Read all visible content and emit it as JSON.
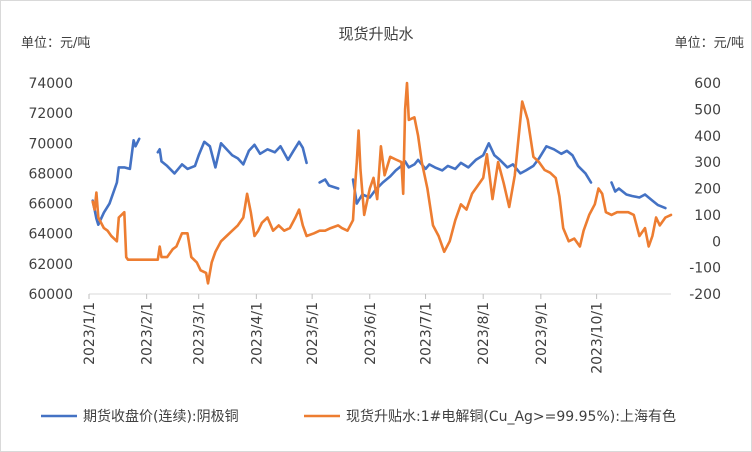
{
  "chart_data": {
    "type": "line",
    "title": "现货升贴水",
    "left_unit_label": "单位：元/吨",
    "right_unit_label": "单位：元/吨",
    "y_left": {
      "min": 60000,
      "max": 74000,
      "ticks": [
        60000,
        62000,
        64000,
        66000,
        68000,
        70000,
        72000,
        74000
      ]
    },
    "y_right": {
      "min": -200,
      "max": 600,
      "ticks": [
        -200,
        -100,
        0,
        100,
        200,
        300,
        400,
        500,
        600
      ]
    },
    "x_axis": {
      "start": "2023-01-01",
      "end": "2023-11-10",
      "ticks": [
        "2023/1/1",
        "2023/2/1",
        "2023/3/1",
        "2023/4/1",
        "2023/5/1",
        "2023/6/1",
        "2023/7/1",
        "2023/8/1",
        "2023/9/1",
        "2023/10/1"
      ]
    },
    "legend": "bottom",
    "series": [
      {
        "name": "期货收盘价(连续):阴极铜",
        "axis": "left",
        "color": "#4472c4",
        "points": [
          [
            "2023-01-03",
            66200
          ],
          [
            "2023-01-04",
            65600
          ],
          [
            "2023-01-05",
            65000
          ],
          [
            "2023-01-06",
            64600
          ],
          [
            "2023-01-09",
            65400
          ],
          [
            "2023-01-12",
            66000
          ],
          [
            "2023-01-16",
            67400
          ],
          [
            "2023-01-17",
            68400
          ],
          [
            "2023-01-20",
            68400
          ],
          [
            "2023-01-23",
            68300
          ],
          [
            "2023-01-25",
            70200
          ],
          [
            "2023-01-26",
            69800
          ],
          [
            "2023-01-28",
            70300
          ],
          [
            "2023-01-29",
            null
          ],
          [
            "2023-02-07",
            69400
          ],
          [
            "2023-02-08",
            69600
          ],
          [
            "2023-02-09",
            68800
          ],
          [
            "2023-02-12",
            68500
          ],
          [
            "2023-02-16",
            68000
          ],
          [
            "2023-02-20",
            68600
          ],
          [
            "2023-02-23",
            68300
          ],
          [
            "2023-02-27",
            68500
          ],
          [
            "2023-03-01",
            69200
          ],
          [
            "2023-03-04",
            70100
          ],
          [
            "2023-03-07",
            69800
          ],
          [
            "2023-03-10",
            68400
          ],
          [
            "2023-03-13",
            70000
          ],
          [
            "2023-03-16",
            69600
          ],
          [
            "2023-03-19",
            69200
          ],
          [
            "2023-03-22",
            69000
          ],
          [
            "2023-03-25",
            68600
          ],
          [
            "2023-03-28",
            69500
          ],
          [
            "2023-03-31",
            69900
          ],
          [
            "2023-04-03",
            69300
          ],
          [
            "2023-04-07",
            69600
          ],
          [
            "2023-04-11",
            69400
          ],
          [
            "2023-04-14",
            69800
          ],
          [
            "2023-04-18",
            68900
          ],
          [
            "2023-04-21",
            69500
          ],
          [
            "2023-04-24",
            70100
          ],
          [
            "2023-04-26",
            69700
          ],
          [
            "2023-04-28",
            68700
          ],
          [
            "2023-04-29",
            null
          ],
          [
            "2023-05-05",
            67400
          ],
          [
            "2023-05-08",
            67600
          ],
          [
            "2023-05-10",
            67200
          ],
          [
            "2023-05-15",
            67000
          ],
          [
            "2023-05-16",
            null
          ],
          [
            "2023-05-23",
            67600
          ],
          [
            "2023-05-25",
            66000
          ],
          [
            "2023-05-28",
            66600
          ],
          [
            "2023-06-01",
            66400
          ],
          [
            "2023-06-04",
            66900
          ],
          [
            "2023-06-08",
            67400
          ],
          [
            "2023-06-12",
            67800
          ],
          [
            "2023-06-15",
            68200
          ],
          [
            "2023-06-18",
            68500
          ],
          [
            "2023-06-20",
            68800
          ],
          [
            "2023-06-22",
            68400
          ],
          [
            "2023-06-25",
            68600
          ],
          [
            "2023-06-27",
            68900
          ],
          [
            "2023-07-01",
            68300
          ],
          [
            "2023-07-03",
            68600
          ],
          [
            "2023-07-06",
            68400
          ],
          [
            "2023-07-10",
            68200
          ],
          [
            "2023-07-13",
            68500
          ],
          [
            "2023-07-17",
            68300
          ],
          [
            "2023-07-20",
            68700
          ],
          [
            "2023-07-24",
            68400
          ],
          [
            "2023-07-28",
            68900
          ],
          [
            "2023-08-01",
            69200
          ],
          [
            "2023-08-04",
            70000
          ],
          [
            "2023-08-07",
            69200
          ],
          [
            "2023-08-10",
            68900
          ],
          [
            "2023-08-14",
            68400
          ],
          [
            "2023-08-17",
            68600
          ],
          [
            "2023-08-21",
            68000
          ],
          [
            "2023-08-24",
            68200
          ],
          [
            "2023-08-28",
            68500
          ],
          [
            "2023-08-31",
            69000
          ],
          [
            "2023-09-04",
            69800
          ],
          [
            "2023-09-08",
            69600
          ],
          [
            "2023-09-12",
            69300
          ],
          [
            "2023-09-15",
            69500
          ],
          [
            "2023-09-18",
            69200
          ],
          [
            "2023-09-21",
            68500
          ],
          [
            "2023-09-25",
            68000
          ],
          [
            "2023-09-28",
            67400
          ],
          [
            "2023-09-29",
            null
          ],
          [
            "2023-10-09",
            67400
          ],
          [
            "2023-10-11",
            66800
          ],
          [
            "2023-10-13",
            67000
          ],
          [
            "2023-10-17",
            66600
          ],
          [
            "2023-10-20",
            66500
          ],
          [
            "2023-10-24",
            66400
          ],
          [
            "2023-10-27",
            66600
          ],
          [
            "2023-10-31",
            66200
          ],
          [
            "2023-11-03",
            65900
          ],
          [
            "2023-11-07",
            65700
          ]
        ]
      },
      {
        "name": "现货升贴水:1#电解铜(Cu_Ag>=99.95%):上海有色",
        "axis": "right",
        "color": "#ed7d31",
        "points": [
          [
            "2023-01-03",
            150
          ],
          [
            "2023-01-04",
            120
          ],
          [
            "2023-01-05",
            185
          ],
          [
            "2023-01-06",
            90
          ],
          [
            "2023-01-09",
            50
          ],
          [
            "2023-01-11",
            40
          ],
          [
            "2023-01-13",
            20
          ],
          [
            "2023-01-16",
            0
          ],
          [
            "2023-01-17",
            90
          ],
          [
            "2023-01-20",
            110
          ],
          [
            "2023-01-21",
            -60
          ],
          [
            "2023-01-22",
            -70
          ],
          [
            "2023-02-07",
            -70
          ],
          [
            "2023-02-08",
            -20
          ],
          [
            "2023-02-09",
            -60
          ],
          [
            "2023-02-12",
            -60
          ],
          [
            "2023-02-15",
            -30
          ],
          [
            "2023-02-17",
            -20
          ],
          [
            "2023-02-20",
            30
          ],
          [
            "2023-02-23",
            30
          ],
          [
            "2023-02-25",
            -60
          ],
          [
            "2023-02-28",
            -80
          ],
          [
            "2023-03-02",
            -110
          ],
          [
            "2023-03-05",
            -120
          ],
          [
            "2023-03-06",
            -160
          ],
          [
            "2023-03-08",
            -80
          ],
          [
            "2023-03-10",
            -40
          ],
          [
            "2023-03-13",
            0
          ],
          [
            "2023-03-16",
            20
          ],
          [
            "2023-03-19",
            40
          ],
          [
            "2023-03-22",
            60
          ],
          [
            "2023-03-25",
            90
          ],
          [
            "2023-03-27",
            180
          ],
          [
            "2023-03-29",
            110
          ],
          [
            "2023-03-31",
            20
          ],
          [
            "2023-04-02",
            40
          ],
          [
            "2023-04-04",
            70
          ],
          [
            "2023-04-07",
            90
          ],
          [
            "2023-04-10",
            40
          ],
          [
            "2023-04-13",
            60
          ],
          [
            "2023-04-16",
            40
          ],
          [
            "2023-04-19",
            50
          ],
          [
            "2023-04-22",
            90
          ],
          [
            "2023-04-24",
            120
          ],
          [
            "2023-04-26",
            60
          ],
          [
            "2023-04-28",
            20
          ],
          [
            "2023-05-02",
            30
          ],
          [
            "2023-05-05",
            40
          ],
          [
            "2023-05-08",
            40
          ],
          [
            "2023-05-11",
            50
          ],
          [
            "2023-05-15",
            60
          ],
          [
            "2023-05-17",
            50
          ],
          [
            "2023-05-20",
            40
          ],
          [
            "2023-05-23",
            80
          ],
          [
            "2023-05-24",
            200
          ],
          [
            "2023-05-25",
            300
          ],
          [
            "2023-05-26",
            420
          ],
          [
            "2023-05-27",
            270
          ],
          [
            "2023-05-29",
            100
          ],
          [
            "2023-06-01",
            200
          ],
          [
            "2023-06-03",
            240
          ],
          [
            "2023-06-05",
            160
          ],
          [
            "2023-06-07",
            360
          ],
          [
            "2023-06-09",
            250
          ],
          [
            "2023-06-12",
            320
          ],
          [
            "2023-06-15",
            310
          ],
          [
            "2023-06-18",
            300
          ],
          [
            "2023-06-19",
            180
          ],
          [
            "2023-06-20",
            500
          ],
          [
            "2023-06-21",
            600
          ],
          [
            "2023-06-22",
            460
          ],
          [
            "2023-06-25",
            470
          ],
          [
            "2023-06-27",
            400
          ],
          [
            "2023-06-29",
            300
          ],
          [
            "2023-07-02",
            200
          ],
          [
            "2023-07-05",
            60
          ],
          [
            "2023-07-08",
            20
          ],
          [
            "2023-07-11",
            -40
          ],
          [
            "2023-07-14",
            0
          ],
          [
            "2023-07-17",
            80
          ],
          [
            "2023-07-20",
            140
          ],
          [
            "2023-07-23",
            120
          ],
          [
            "2023-07-26",
            180
          ],
          [
            "2023-07-29",
            210
          ],
          [
            "2023-08-01",
            240
          ],
          [
            "2023-08-03",
            330
          ],
          [
            "2023-08-06",
            160
          ],
          [
            "2023-08-09",
            300
          ],
          [
            "2023-08-12",
            220
          ],
          [
            "2023-08-15",
            130
          ],
          [
            "2023-08-18",
            250
          ],
          [
            "2023-08-22",
            530
          ],
          [
            "2023-08-25",
            460
          ],
          [
            "2023-08-28",
            320
          ],
          [
            "2023-08-31",
            300
          ],
          [
            "2023-09-03",
            270
          ],
          [
            "2023-09-06",
            260
          ],
          [
            "2023-09-09",
            240
          ],
          [
            "2023-09-11",
            170
          ],
          [
            "2023-09-13",
            50
          ],
          [
            "2023-09-16",
            0
          ],
          [
            "2023-09-19",
            10
          ],
          [
            "2023-09-22",
            -20
          ],
          [
            "2023-09-24",
            40
          ],
          [
            "2023-09-27",
            100
          ],
          [
            "2023-09-30",
            140
          ],
          [
            "2023-10-02",
            200
          ],
          [
            "2023-10-04",
            180
          ],
          [
            "2023-10-06",
            110
          ],
          [
            "2023-10-09",
            100
          ],
          [
            "2023-10-12",
            110
          ],
          [
            "2023-10-15",
            110
          ],
          [
            "2023-10-18",
            110
          ],
          [
            "2023-10-21",
            100
          ],
          [
            "2023-10-24",
            20
          ],
          [
            "2023-10-27",
            50
          ],
          [
            "2023-10-29",
            -20
          ],
          [
            "2023-10-31",
            20
          ],
          [
            "2023-11-02",
            90
          ],
          [
            "2023-11-04",
            60
          ],
          [
            "2023-11-07",
            90
          ],
          [
            "2023-11-10",
            100
          ]
        ]
      }
    ]
  }
}
